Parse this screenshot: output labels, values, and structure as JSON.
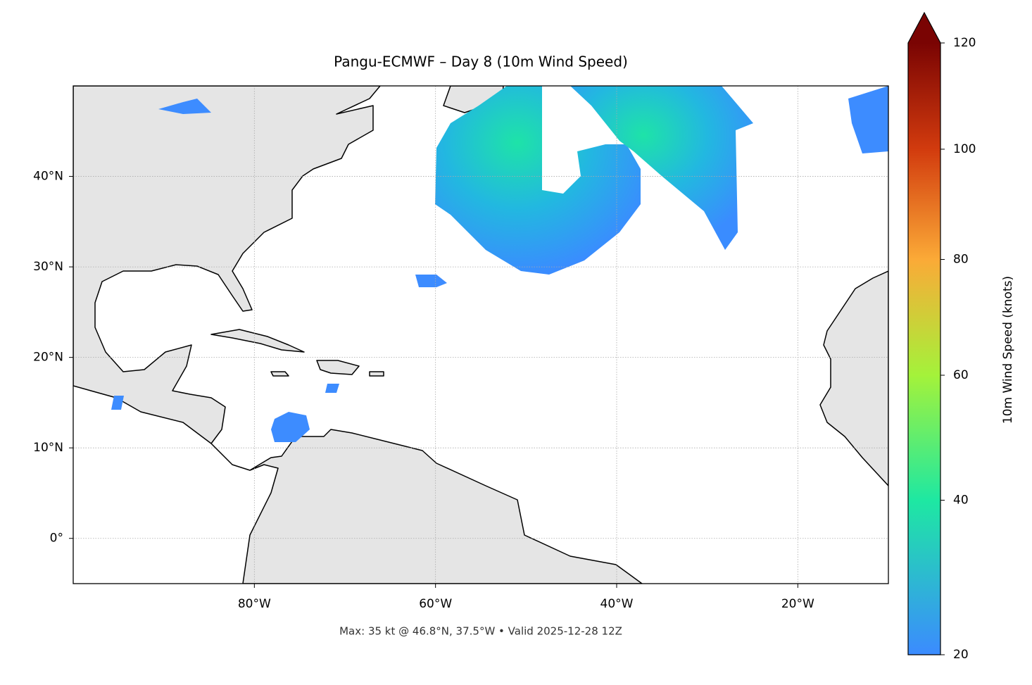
{
  "chart_data": {
    "type": "map",
    "title": "Pangu-ECMWF – Day 8 (10m Wind Speed)",
    "note": "Max: 35 kt @ 46.8°N, 37.5°W • Valid 2025-12-28 12Z",
    "xlim": [
      -100,
      -10
    ],
    "ylim": [
      -5,
      50
    ],
    "xticks": [
      {
        "value": -80,
        "label": "80°W"
      },
      {
        "value": -60,
        "label": "60°W"
      },
      {
        "value": -40,
        "label": "40°W"
      },
      {
        "value": -20,
        "label": "20°W"
      }
    ],
    "yticks": [
      {
        "value": 0,
        "label": "0°"
      },
      {
        "value": 10,
        "label": "10°N"
      },
      {
        "value": 20,
        "label": "20°N"
      },
      {
        "value": 30,
        "label": "30°N"
      },
      {
        "value": 40,
        "label": "40°N"
      }
    ],
    "grid": true,
    "colorbar": {
      "label": "10m Wind Speed (knots)",
      "lim": [
        20,
        120
      ],
      "ticks": [
        20,
        40,
        60,
        80,
        100,
        120
      ],
      "colors": [
        "#3b8bff",
        "#1ee8a2",
        "#a4f23a",
        "#fbaa37",
        "#d23b0e",
        "#7a0403"
      ],
      "extend": "max"
    }
  }
}
